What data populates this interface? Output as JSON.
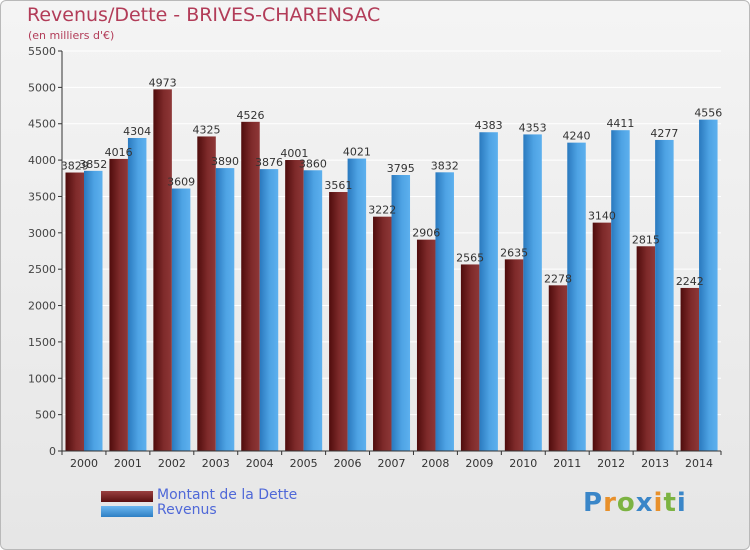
{
  "title": "Revenus/Dette - BRIVES-CHARENSAC",
  "subtitle": "(en milliers d'€)",
  "colors": {
    "dette": "#7a2626",
    "revenus": "#4a9fe0",
    "title": "#b23c58",
    "legend_text": "#4f68d8"
  },
  "legend": [
    {
      "label": "Montant de la Dette",
      "color": "#7a2626"
    },
    {
      "label": "Revenus",
      "color": "#4a9fe0"
    }
  ],
  "logo": {
    "text": "Proxiti",
    "letters": [
      "P",
      "r",
      "o",
      "x",
      "i",
      "t",
      "i"
    ]
  },
  "chart_data": {
    "type": "bar",
    "title": "Revenus/Dette - BRIVES-CHARENSAC",
    "subtitle": "(en milliers d'€)",
    "xlabel": "",
    "ylabel": "",
    "ylim": [
      0,
      5500
    ],
    "yticks": [
      0,
      500,
      1000,
      1500,
      2000,
      2500,
      3000,
      3500,
      4000,
      4500,
      5000,
      5500
    ],
    "grid": true,
    "categories": [
      "2000",
      "2001",
      "2002",
      "2003",
      "2004",
      "2005",
      "2006",
      "2007",
      "2008",
      "2009",
      "2010",
      "2011",
      "2012",
      "2013",
      "2014"
    ],
    "series": [
      {
        "name": "Montant de la Dette",
        "values": [
          3829,
          4016,
          4973,
          4325,
          4526,
          4001,
          3561,
          3222,
          2906,
          2565,
          2635,
          2278,
          3140,
          2815,
          2242
        ],
        "labels": [
          "3829",
          "4016",
          "4973",
          "4325",
          "4526",
          "4001",
          "3561",
          "3222",
          "2906",
          "2565",
          "2635",
          "2278",
          "3140",
          "2815",
          "2242"
        ]
      },
      {
        "name": "Revenus",
        "values": [
          3852,
          4304,
          3609,
          3890,
          3876,
          3860,
          4021,
          3795,
          3832,
          4383,
          4353,
          4240,
          4411,
          4277,
          4556
        ],
        "labels": [
          "3852",
          "4304",
          "3609",
          "3890",
          "3876",
          "3860",
          "4021",
          "3795",
          "3832",
          "4383",
          "4353",
          "4240",
          "4411",
          "4277",
          "4556"
        ]
      }
    ],
    "legend_position": "bottom-left"
  }
}
